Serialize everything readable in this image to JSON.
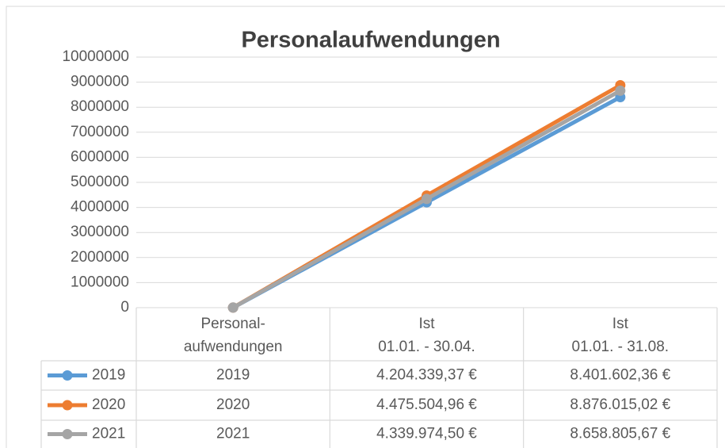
{
  "chart_data": {
    "type": "line",
    "title": "Personalaufwendungen",
    "categories": [
      "Personal-\naufwendungen",
      "Ist\n01.01. - 30.04.",
      "Ist\n01.01. - 31.08."
    ],
    "series": [
      {
        "name": "2019",
        "color": "#5b9bd5",
        "values": [
          2019,
          4204339.37,
          8401602.36
        ],
        "value_labels": [
          "2019",
          "4.204.339,37 €",
          "8.401.602,36 €"
        ]
      },
      {
        "name": "2020",
        "color": "#ed7d31",
        "values": [
          2020,
          4475504.96,
          8876015.02
        ],
        "value_labels": [
          "2020",
          "4.475.504,96 €",
          "8.876.015,02 €"
        ]
      },
      {
        "name": "2021",
        "color": "#a5a5a5",
        "values": [
          2021,
          4339974.5,
          8658805.67
        ],
        "value_labels": [
          "2021",
          "4.339.974,50 €",
          "8.658.805,67 €"
        ]
      }
    ],
    "ylim": [
      0,
      10000000
    ],
    "yticks": [
      0,
      1000000,
      2000000,
      3000000,
      4000000,
      5000000,
      6000000,
      7000000,
      8000000,
      9000000,
      10000000
    ],
    "grid": true
  }
}
